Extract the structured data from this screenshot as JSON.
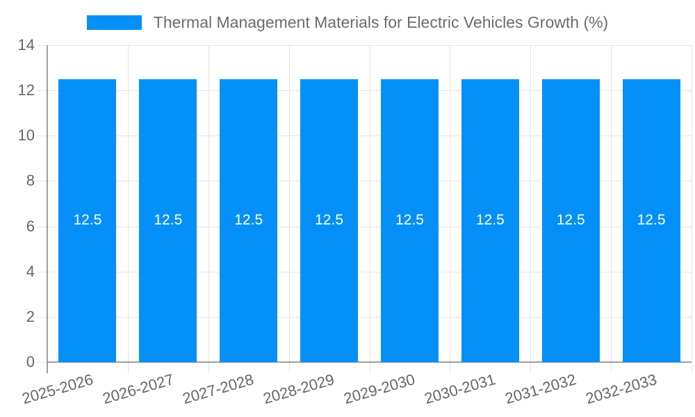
{
  "chart_data": {
    "type": "bar",
    "title": "Thermal Management Materials for Electric Vehicles Growth (%)",
    "categories": [
      "2025-2026",
      "2026-2027",
      "2027-2028",
      "2028-2029",
      "2029-2030",
      "2030-2031",
      "2031-2032",
      "2032-2033"
    ],
    "values": [
      12.5,
      12.5,
      12.5,
      12.5,
      12.5,
      12.5,
      12.5,
      12.5
    ],
    "value_labels": [
      "12.5",
      "12.5",
      "12.5",
      "12.5",
      "12.5",
      "12.5",
      "12.5",
      "12.5"
    ],
    "xlabel": "",
    "ylabel": "",
    "ylim": [
      0,
      14
    ],
    "ytick_step": 2,
    "ytick_labels": [
      "0",
      "2",
      "4",
      "6",
      "8",
      "10",
      "12",
      "14"
    ],
    "grid": true,
    "legend_position": "top",
    "colors": {
      "bar": "#0590F8",
      "grid": "#E3E3E3",
      "axis": "#9E9E9E",
      "tick_label": "#666666",
      "legend_label": "#6B6B6B",
      "value_label": "#FFFFFF",
      "background": "#FFFFFF"
    }
  }
}
